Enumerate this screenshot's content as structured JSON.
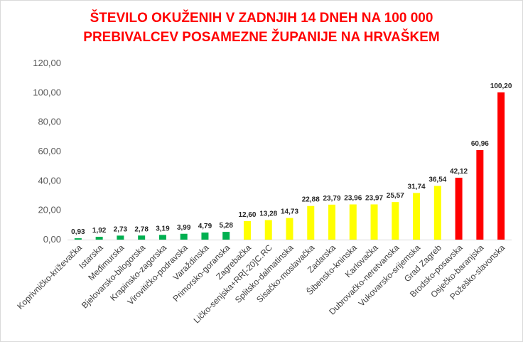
{
  "chart_data": {
    "type": "bar",
    "title_lines": [
      "ŠTEVILO OKUŽENIH V ZADNJIH 14 DNEH NA 100 000",
      "PREBIVALCEV POSAMEZNE ŽUPANIJE NA HRVAŠKEM"
    ],
    "categories": [
      "Koprivničko-križevačka",
      "Istarska",
      "Međimurska",
      "Bjelovarsko-bilogorska",
      "Krapinsko-zagorska",
      "Virovitičko-podravska",
      "Varaždinska",
      "Primorsko-goranska",
      "Zagrebačka",
      "Ličko-senjska+RR[-20]C.RC",
      "Splitsko-dalmatinska",
      "Sisačko-moslavačka",
      "Zadarska",
      "Šibensko-kninska",
      "Karlovačka",
      "Dubrovačko-neretvanska",
      "Vukovarsko-srijemska",
      "Grad Zagreb",
      "Brodsko-posavska",
      "Osječko-baranjska",
      "Požeško-slavonska"
    ],
    "values": [
      0.93,
      1.92,
      2.73,
      2.78,
      3.19,
      3.99,
      4.79,
      5.28,
      12.6,
      13.28,
      14.73,
      22.88,
      23.79,
      23.96,
      23.97,
      25.57,
      31.74,
      36.54,
      42.12,
      60.96,
      100.2
    ],
    "value_labels": [
      "0,93",
      "1,92",
      "2,73",
      "2,78",
      "3,19",
      "3,99",
      "4,79",
      "5,28",
      "12,60",
      "13,28",
      "14,73",
      "22,88",
      "23,79",
      "23,96",
      "23,97",
      "25,57",
      "31,74",
      "36,54",
      "42,12",
      "60,96",
      "100,20"
    ],
    "colors": [
      "#00b050",
      "#00b050",
      "#00b050",
      "#00b050",
      "#00b050",
      "#00b050",
      "#00b050",
      "#00b050",
      "#ffff00",
      "#ffff00",
      "#ffff00",
      "#ffff00",
      "#ffff00",
      "#ffff00",
      "#ffff00",
      "#ffff00",
      "#ffff00",
      "#ffff00",
      "#ff0000",
      "#ff0000",
      "#ff0000"
    ],
    "yticks": [
      "0,00",
      "20,00",
      "40,00",
      "60,00",
      "80,00",
      "100,00",
      "120,00"
    ],
    "ylim": [
      0,
      120
    ],
    "grid": false,
    "legend": "none"
  }
}
